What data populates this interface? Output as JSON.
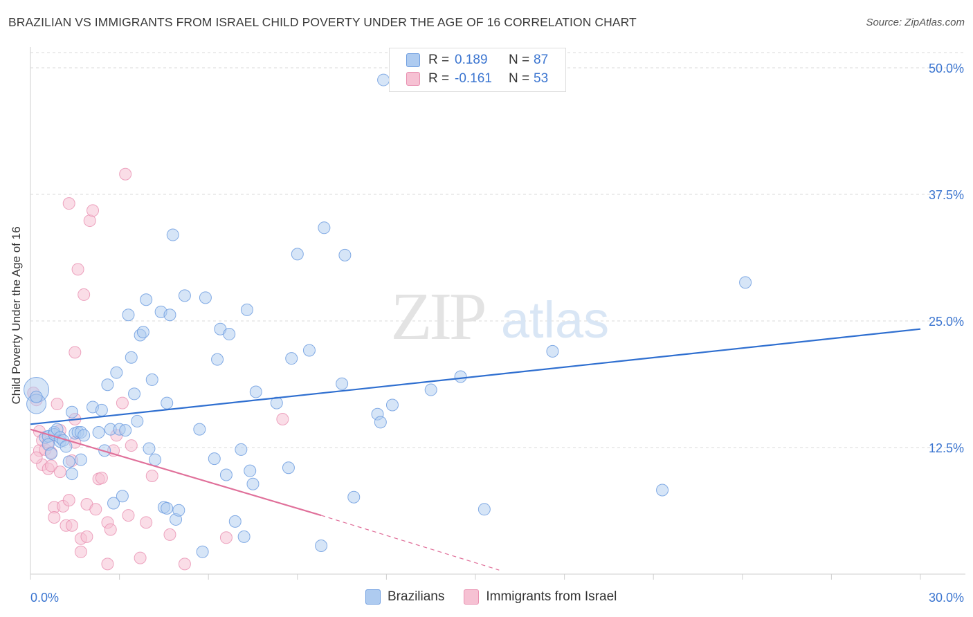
{
  "header": {
    "title": "BRAZILIAN VS IMMIGRANTS FROM ISRAEL CHILD POVERTY UNDER THE AGE OF 16 CORRELATION CHART",
    "source": "Source: ZipAtlas.com"
  },
  "watermark": {
    "zip": "ZIP",
    "atlas": "atlas"
  },
  "legend_top": {
    "rows": [
      {
        "r_label": "R =",
        "r_value": "0.189",
        "n_label": "N =",
        "n_value": "87"
      },
      {
        "r_label": "R =",
        "r_value": "-0.161",
        "n_label": "N =",
        "n_value": "53"
      }
    ]
  },
  "legend_bottom": {
    "items": [
      {
        "label": "Brazilians"
      },
      {
        "label": "Immigrants from Israel"
      }
    ]
  },
  "colors": {
    "blue_fill": "#aecbf0",
    "blue_stroke": "#6f9ee0",
    "blue_line": "#2f6fd0",
    "pink_fill": "#f6c1d3",
    "pink_stroke": "#e98fb0",
    "pink_line": "#e0709a",
    "axis_text": "#3b75d0",
    "grid": "#d9d9d9"
  },
  "chart_data": {
    "type": "scatter",
    "title": "BRAZILIAN VS IMMIGRANTS FROM ISRAEL CHILD POVERTY UNDER THE AGE OF 16 CORRELATION CHART",
    "xlabel": "",
    "ylabel": "Child Poverty Under the Age of 16",
    "xlim": [
      0,
      30
    ],
    "ylim": [
      0,
      50
    ],
    "x_tick_labels": [
      "0.0%",
      "30.0%"
    ],
    "y_tick_values": [
      12.5,
      25.0,
      37.5,
      50.0
    ],
    "y_tick_labels": [
      "12.5%",
      "25.0%",
      "37.5%",
      "50.0%"
    ],
    "grid": true,
    "legend_position": "top-center",
    "series": [
      {
        "name": "Brazilians",
        "color": "#aecbf0",
        "R": 0.189,
        "N": 87,
        "trend": {
          "x0": 0,
          "y0": 14.8,
          "x1": 30,
          "y1": 24.2
        },
        "points": [
          [
            0.2,
            18.2
          ],
          [
            0.2,
            16.8
          ],
          [
            0.2,
            17.5
          ],
          [
            0.5,
            13.5
          ],
          [
            0.6,
            13.6
          ],
          [
            0.6,
            12.8
          ],
          [
            0.7,
            11.9
          ],
          [
            0.8,
            14.0
          ],
          [
            0.8,
            13.8
          ],
          [
            0.9,
            14.3
          ],
          [
            1.0,
            13.1
          ],
          [
            1.0,
            13.5
          ],
          [
            1.1,
            13.2
          ],
          [
            1.2,
            12.6
          ],
          [
            1.3,
            11.1
          ],
          [
            1.4,
            16.0
          ],
          [
            1.5,
            13.9
          ],
          [
            1.6,
            14.0
          ],
          [
            1.7,
            14.0
          ],
          [
            1.8,
            13.7
          ],
          [
            1.4,
            9.9
          ],
          [
            1.7,
            11.3
          ],
          [
            2.1,
            16.5
          ],
          [
            2.3,
            14.0
          ],
          [
            2.4,
            16.2
          ],
          [
            2.5,
            12.2
          ],
          [
            2.6,
            18.7
          ],
          [
            2.7,
            14.3
          ],
          [
            2.8,
            7.0
          ],
          [
            2.9,
            19.9
          ],
          [
            3.0,
            14.3
          ],
          [
            3.1,
            7.7
          ],
          [
            3.2,
            14.2
          ],
          [
            3.3,
            25.6
          ],
          [
            3.4,
            21.4
          ],
          [
            3.5,
            17.8
          ],
          [
            3.6,
            15.1
          ],
          [
            3.7,
            23.6
          ],
          [
            3.8,
            23.9
          ],
          [
            3.9,
            27.1
          ],
          [
            4.0,
            12.4
          ],
          [
            4.1,
            19.2
          ],
          [
            4.2,
            11.3
          ],
          [
            4.4,
            25.9
          ],
          [
            4.5,
            6.6
          ],
          [
            4.6,
            6.5
          ],
          [
            4.6,
            16.9
          ],
          [
            4.7,
            25.6
          ],
          [
            4.8,
            33.5
          ],
          [
            4.9,
            5.4
          ],
          [
            5.0,
            6.3
          ],
          [
            5.2,
            27.5
          ],
          [
            5.7,
            14.3
          ],
          [
            5.8,
            2.2
          ],
          [
            5.9,
            27.3
          ],
          [
            6.2,
            11.4
          ],
          [
            6.3,
            21.2
          ],
          [
            6.4,
            24.2
          ],
          [
            6.6,
            9.8
          ],
          [
            6.7,
            23.7
          ],
          [
            6.9,
            5.2
          ],
          [
            7.1,
            12.3
          ],
          [
            7.2,
            3.7
          ],
          [
            7.3,
            26.1
          ],
          [
            7.4,
            10.2
          ],
          [
            7.5,
            8.9
          ],
          [
            7.6,
            18.0
          ],
          [
            8.3,
            16.9
          ],
          [
            8.7,
            10.5
          ],
          [
            8.8,
            21.3
          ],
          [
            9.0,
            31.6
          ],
          [
            9.4,
            22.1
          ],
          [
            9.8,
            2.8
          ],
          [
            9.9,
            34.2
          ],
          [
            10.5,
            18.8
          ],
          [
            10.6,
            31.5
          ],
          [
            10.9,
            7.6
          ],
          [
            11.7,
            15.8
          ],
          [
            11.8,
            15.0
          ],
          [
            11.9,
            48.8
          ],
          [
            12.2,
            16.7
          ],
          [
            13.5,
            18.2
          ],
          [
            14.5,
            19.5
          ],
          [
            15.3,
            6.4
          ],
          [
            17.6,
            22.0
          ],
          [
            21.3,
            8.3
          ],
          [
            24.1,
            28.8
          ]
        ]
      },
      {
        "name": "Immigrants from Israel",
        "color": "#f6c1d3",
        "R": -0.161,
        "N": 53,
        "trend": {
          "x0": 0,
          "y0": 14.3,
          "x1": 9.8,
          "y1": 5.8,
          "dash_x1": 15.8,
          "dash_y1": 0.4
        },
        "points": [
          [
            0.1,
            17.9
          ],
          [
            0.2,
            17.2
          ],
          [
            0.3,
            14.1
          ],
          [
            0.3,
            12.2
          ],
          [
            0.4,
            13.2
          ],
          [
            0.4,
            10.8
          ],
          [
            0.5,
            12.3
          ],
          [
            0.6,
            10.4
          ],
          [
            0.6,
            13.0
          ],
          [
            0.7,
            12.0
          ],
          [
            0.7,
            10.7
          ],
          [
            0.8,
            6.6
          ],
          [
            0.8,
            5.6
          ],
          [
            0.9,
            16.8
          ],
          [
            1.0,
            14.2
          ],
          [
            1.0,
            10.1
          ],
          [
            1.1,
            6.7
          ],
          [
            1.2,
            4.8
          ],
          [
            1.3,
            7.3
          ],
          [
            1.3,
            36.6
          ],
          [
            1.4,
            11.2
          ],
          [
            1.4,
            4.8
          ],
          [
            1.5,
            21.9
          ],
          [
            1.5,
            15.3
          ],
          [
            1.5,
            13.0
          ],
          [
            1.6,
            30.1
          ],
          [
            1.7,
            3.5
          ],
          [
            1.7,
            2.2
          ],
          [
            1.8,
            27.6
          ],
          [
            1.9,
            6.9
          ],
          [
            1.9,
            3.7
          ],
          [
            2.0,
            34.9
          ],
          [
            2.1,
            35.9
          ],
          [
            2.2,
            6.4
          ],
          [
            2.3,
            9.4
          ],
          [
            2.4,
            9.5
          ],
          [
            2.6,
            1.0
          ],
          [
            2.6,
            5.1
          ],
          [
            2.7,
            4.4
          ],
          [
            2.8,
            12.2
          ],
          [
            2.9,
            13.7
          ],
          [
            3.1,
            16.9
          ],
          [
            3.2,
            39.5
          ],
          [
            3.3,
            5.8
          ],
          [
            3.4,
            12.7
          ],
          [
            3.7,
            1.6
          ],
          [
            3.9,
            5.1
          ],
          [
            4.1,
            9.7
          ],
          [
            4.7,
            3.9
          ],
          [
            5.2,
            1.0
          ],
          [
            6.6,
            3.6
          ],
          [
            8.5,
            15.3
          ],
          [
            0.2,
            11.5
          ]
        ]
      }
    ]
  }
}
